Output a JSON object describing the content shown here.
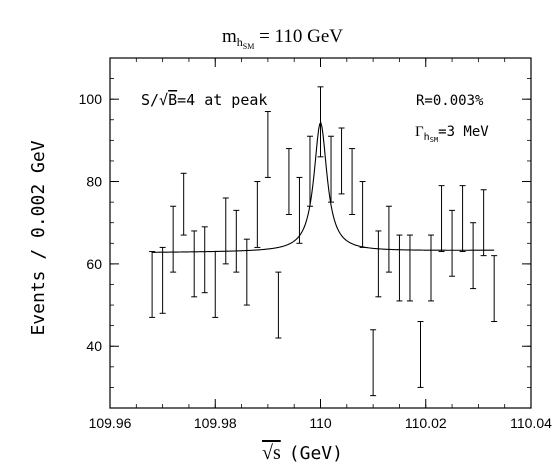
{
  "chart_data": {
    "type": "scatter",
    "title_main": "m",
    "title_sub": "h",
    "title_subsub": "SM",
    "title_value": " = 110 GeV",
    "xlabel_root": "√s",
    "xlabel_unit": "(GeV)",
    "ylabel": "Events / 0.002 GeV",
    "xlim": [
      109.96,
      110.04
    ],
    "ylim": [
      25,
      110
    ],
    "xticks": [
      109.96,
      109.98,
      110.0,
      110.02,
      110.04
    ],
    "xtick_labels": [
      "109.96",
      "109.98",
      "110",
      "110.02",
      "110.04"
    ],
    "yticks": [
      40,
      60,
      80,
      100
    ],
    "ytick_labels": [
      "40",
      "60",
      "80",
      "100"
    ],
    "annotations": {
      "peak_text_prefix": "S/√",
      "peak_text_b": "B",
      "peak_text_suffix": "=4 at peak",
      "r_text": "R=0.003%",
      "gamma_text": "Γ",
      "gamma_sub": "h",
      "gamma_subsub": "SM",
      "gamma_value": "=3 MeV"
    },
    "curve": {
      "baseline": 63,
      "peak_x": 110.0,
      "peak_height": 31.3,
      "half_width": 0.0015
    },
    "points": [
      {
        "x": 109.968,
        "low": 47,
        "high": 63
      },
      {
        "x": 109.97,
        "low": 48,
        "high": 64
      },
      {
        "x": 109.972,
        "low": 58,
        "high": 74
      },
      {
        "x": 109.974,
        "low": 67,
        "high": 82
      },
      {
        "x": 109.976,
        "low": 52,
        "high": 68
      },
      {
        "x": 109.978,
        "low": 53,
        "high": 69
      },
      {
        "x": 109.98,
        "low": 47,
        "high": 63
      },
      {
        "x": 109.982,
        "low": 60,
        "high": 76
      },
      {
        "x": 109.984,
        "low": 58,
        "high": 73
      },
      {
        "x": 109.986,
        "low": 50,
        "high": 66
      },
      {
        "x": 109.988,
        "low": 64,
        "high": 80
      },
      {
        "x": 109.99,
        "low": 81,
        "high": 97
      },
      {
        "x": 109.992,
        "low": 42,
        "high": 58
      },
      {
        "x": 109.994,
        "low": 72,
        "high": 88
      },
      {
        "x": 109.996,
        "low": 65,
        "high": 81
      },
      {
        "x": 109.998,
        "low": 74,
        "high": 91
      },
      {
        "x": 110.0,
        "low": 86,
        "high": 103
      },
      {
        "x": 110.002,
        "low": 75,
        "high": 91
      },
      {
        "x": 110.004,
        "low": 77,
        "high": 93
      },
      {
        "x": 110.006,
        "low": 72,
        "high": 88
      },
      {
        "x": 110.008,
        "low": 64,
        "high": 80
      },
      {
        "x": 110.01,
        "low": 28,
        "high": 44
      },
      {
        "x": 110.011,
        "low": 52,
        "high": 68
      },
      {
        "x": 110.013,
        "low": 58,
        "high": 74
      },
      {
        "x": 110.015,
        "low": 51,
        "high": 67
      },
      {
        "x": 110.017,
        "low": 51,
        "high": 67
      },
      {
        "x": 110.019,
        "low": 30,
        "high": 46
      },
      {
        "x": 110.021,
        "low": 51,
        "high": 67
      },
      {
        "x": 110.023,
        "low": 63,
        "high": 79
      },
      {
        "x": 110.025,
        "low": 57,
        "high": 73
      },
      {
        "x": 110.027,
        "low": 63,
        "high": 79
      },
      {
        "x": 110.029,
        "low": 54,
        "high": 70
      },
      {
        "x": 110.031,
        "low": 62,
        "high": 78
      },
      {
        "x": 110.033,
        "low": 46,
        "high": 62
      }
    ]
  }
}
